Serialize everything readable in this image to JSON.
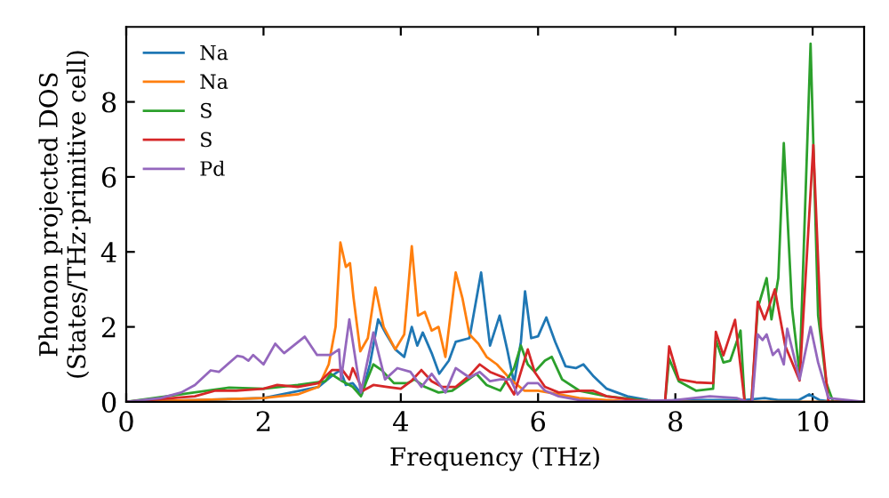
{
  "chart_data": {
    "type": "line",
    "xlabel": "Frequency (THz)",
    "ylabel": "Phonon projected DOS\n(States/THz·primitive cell)",
    "xlim": [
      0,
      10.75
    ],
    "ylim": [
      0,
      10
    ],
    "xticks": [
      0,
      2,
      4,
      6,
      8,
      10
    ],
    "yticks": [
      0,
      2,
      4,
      6,
      8
    ],
    "grid": false,
    "legend": "top left",
    "marker": "none",
    "line_style": "solid",
    "series": [
      {
        "name": "Na",
        "color": "#1f77b4",
        "x": [
          0,
          1,
          2,
          2.8,
          3.0,
          3.12,
          3.2,
          3.3,
          3.43,
          3.55,
          3.67,
          3.79,
          3.92,
          4.05,
          4.16,
          4.24,
          4.32,
          4.45,
          4.56,
          4.7,
          4.8,
          5.0,
          5.17,
          5.3,
          5.44,
          5.55,
          5.65,
          5.75,
          5.81,
          5.9,
          6.0,
          6.12,
          6.25,
          6.4,
          6.55,
          6.66,
          6.8,
          7.0,
          7.3,
          7.6,
          7.8,
          8,
          9,
          9.3,
          9.5,
          9.8,
          9.95,
          10.1,
          10.3,
          10.75
        ],
        "values": [
          0,
          0.05,
          0.1,
          0.4,
          0.7,
          0.85,
          0.45,
          0.5,
          0.2,
          1.0,
          2.2,
          1.8,
          1.4,
          1.2,
          2.0,
          1.5,
          1.85,
          1.3,
          0.75,
          1.1,
          1.6,
          1.7,
          3.45,
          1.5,
          2.3,
          1.4,
          0.5,
          1.6,
          2.95,
          1.7,
          1.75,
          2.25,
          1.6,
          0.95,
          0.9,
          1.0,
          0.7,
          0.35,
          0.15,
          0.05,
          0,
          0.05,
          0.05,
          0.1,
          0.05,
          0.05,
          0.2,
          0.05,
          0,
          0
        ]
      },
      {
        "name": "Na",
        "color": "#ff7f0e",
        "x": [
          0,
          1,
          2,
          2.5,
          2.8,
          2.95,
          3.05,
          3.12,
          3.2,
          3.26,
          3.31,
          3.41,
          3.52,
          3.63,
          3.75,
          3.92,
          4.05,
          4.16,
          4.25,
          4.35,
          4.45,
          4.55,
          4.65,
          4.8,
          4.9,
          5.0,
          5.13,
          5.25,
          5.4,
          5.6,
          5.8,
          6.0,
          6.3,
          6.6,
          7.0,
          7.5,
          10.75
        ],
        "values": [
          0,
          0.05,
          0.1,
          0.2,
          0.4,
          1.0,
          2.0,
          4.25,
          3.6,
          3.7,
          2.8,
          1.35,
          1.7,
          3.05,
          2.0,
          1.4,
          1.8,
          4.15,
          2.3,
          2.4,
          1.9,
          2.0,
          1.2,
          3.45,
          2.75,
          1.8,
          1.55,
          1.2,
          1.0,
          0.6,
          0.3,
          0.3,
          0.2,
          0.1,
          0.05,
          0,
          0
        ]
      },
      {
        "name": "S",
        "color": "#2ca02c",
        "x": [
          0,
          1.5,
          2,
          2.5,
          2.9,
          2.98,
          3.15,
          3.3,
          3.42,
          3.5,
          3.6,
          3.72,
          3.9,
          4.1,
          4.2,
          4.35,
          4.55,
          4.75,
          4.95,
          5.1,
          5.25,
          5.45,
          5.65,
          5.75,
          5.85,
          5.95,
          6.1,
          6.2,
          6.35,
          6.6,
          7.0,
          7.5,
          7.85,
          7.91,
          8.05,
          8.3,
          8.55,
          8.59,
          8.7,
          8.8,
          8.95,
          9.01,
          9.11,
          9.2,
          9.33,
          9.4,
          9.5,
          9.58,
          9.7,
          9.81,
          9.97,
          10.08,
          10.2,
          10.3,
          10.75
        ],
        "values": [
          0,
          0.38,
          0.35,
          0.45,
          0.55,
          0.75,
          0.55,
          0.4,
          0.15,
          0.55,
          1.0,
          0.85,
          0.5,
          0.5,
          0.6,
          0.4,
          0.25,
          0.3,
          0.55,
          0.75,
          0.45,
          0.3,
          0.9,
          1.5,
          1.0,
          0.8,
          1.1,
          1.2,
          0.6,
          0.3,
          0.15,
          0.05,
          0,
          1.15,
          0.55,
          0.3,
          0.35,
          1.65,
          1.05,
          1.1,
          1.9,
          0,
          0,
          2.5,
          3.3,
          2.2,
          3.3,
          6.9,
          2.5,
          0.75,
          9.55,
          2.3,
          0.5,
          0,
          0
        ]
      },
      {
        "name": "S",
        "color": "#d62728",
        "x": [
          0,
          1.0,
          1.3,
          1.6,
          2.0,
          2.2,
          2.5,
          2.8,
          3.0,
          3.15,
          3.25,
          3.3,
          3.45,
          3.6,
          3.8,
          4.0,
          4.15,
          4.3,
          4.45,
          4.6,
          4.8,
          5.0,
          5.15,
          5.3,
          5.5,
          5.65,
          5.75,
          5.85,
          5.95,
          6.1,
          6.3,
          6.6,
          6.8,
          7.0,
          7.4,
          7.85,
          7.91,
          8.05,
          8.3,
          8.55,
          8.59,
          8.7,
          8.87,
          9.01,
          9.11,
          9.2,
          9.3,
          9.45,
          9.6,
          9.81,
          10.01,
          10.12,
          10.23,
          10.75
        ],
        "values": [
          0,
          0.15,
          0.3,
          0.3,
          0.35,
          0.45,
          0.4,
          0.5,
          0.85,
          0.85,
          0.6,
          0.9,
          0.3,
          0.45,
          0.4,
          0.35,
          0.55,
          0.85,
          0.55,
          0.4,
          0.4,
          0.7,
          1.0,
          0.8,
          0.65,
          0.2,
          0.8,
          1.4,
          0.8,
          0.4,
          0.25,
          0.3,
          0.3,
          0.15,
          0.05,
          0,
          1.48,
          0.6,
          0.52,
          0.5,
          1.87,
          1.24,
          2.19,
          0,
          0,
          2.67,
          2.2,
          3.0,
          1.5,
          0.57,
          6.85,
          2.0,
          0,
          0
        ]
      },
      {
        "name": "Pd",
        "color": "#9467bd",
        "x": [
          0,
          0.5,
          0.8,
          1.0,
          1.23,
          1.35,
          1.62,
          1.7,
          1.78,
          1.85,
          2.0,
          2.17,
          2.3,
          2.6,
          2.78,
          2.98,
          3.1,
          3.13,
          3.25,
          3.36,
          3.42,
          3.6,
          3.77,
          3.95,
          4.14,
          4.3,
          4.45,
          4.65,
          4.8,
          5.0,
          5.15,
          5.3,
          5.45,
          5.6,
          5.7,
          5.85,
          6.0,
          6.1,
          6.3,
          6.6,
          7.0,
          8.0,
          8.5,
          8.9,
          9.05,
          9.12,
          9.2,
          9.27,
          9.33,
          9.42,
          9.5,
          9.58,
          9.63,
          9.81,
          9.97,
          10.08,
          10.23,
          10.75
        ],
        "values": [
          0,
          0.1,
          0.25,
          0.45,
          0.84,
          0.8,
          1.23,
          1.2,
          1.1,
          1.25,
          1.0,
          1.55,
          1.3,
          1.74,
          1.25,
          1.25,
          1.4,
          0.6,
          2.2,
          0.9,
          0.25,
          1.85,
          0.6,
          0.9,
          0.8,
          0.4,
          0.75,
          0.25,
          0.9,
          0.65,
          0.8,
          0.55,
          0.6,
          0.6,
          0.2,
          0.5,
          0.5,
          0.3,
          0.15,
          0.05,
          0,
          0.05,
          0.15,
          0.1,
          0,
          0,
          1.8,
          1.65,
          1.8,
          1.25,
          1.4,
          1.0,
          1.95,
          0.6,
          2.0,
          1.05,
          0.1,
          0
        ]
      }
    ]
  }
}
